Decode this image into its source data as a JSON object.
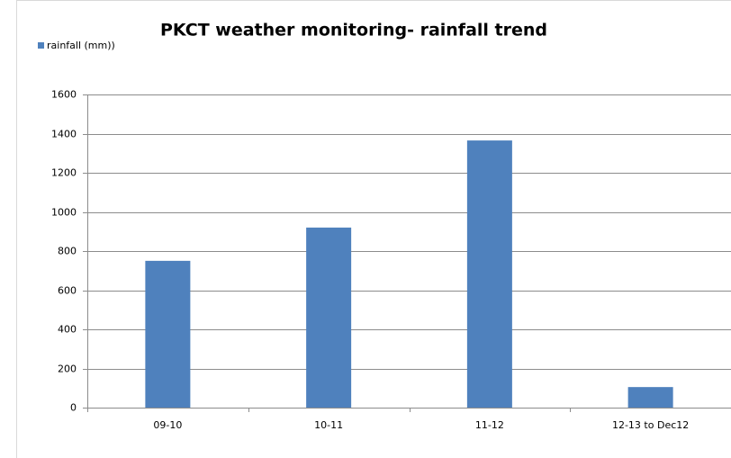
{
  "chart_data": {
    "type": "bar",
    "title": "PKCT weather monitoring- rainfall trend",
    "categories": [
      "09-10",
      "10-11",
      "11-12",
      "12-13 to Dec12"
    ],
    "series": [
      {
        "name": "rainfall (mm))",
        "color": "#4f81bd",
        "values": [
          750,
          920,
          1365,
          105
        ]
      }
    ],
    "ylim": [
      0,
      1600
    ],
    "yticks": [
      0,
      200,
      400,
      600,
      800,
      1000,
      1200,
      1400,
      1600
    ],
    "grid": true,
    "legend": "top-left"
  }
}
